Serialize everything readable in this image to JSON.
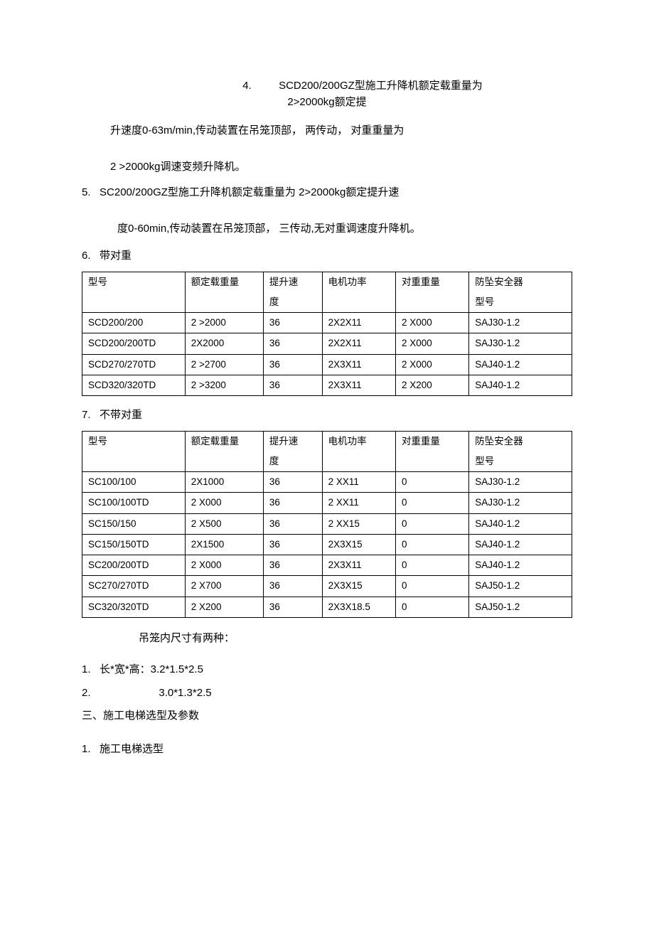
{
  "header": {
    "line1_num": "4.",
    "line1_text": "SCD200/200GZ型施工升降机额定载重量为",
    "line2_text": "2>2000kg额定提"
  },
  "para1": "升速度0-63m/min,传动装置在吊笼顶部， 两传动， 对重重量为",
  "para2": "2 >2000kg调速变频升降机。",
  "item5": "5.   SC200/200GZ型施工升降机额定载重量为 2>2000kg额定提升速",
  "item5b": "度0-60min,传动装置在吊笼顶部， 三传动,无对重调速度升降机。",
  "item6": "6.   带对重",
  "table_common": {
    "headers": {
      "c1": "型号",
      "c2": "额定载重量",
      "c3a": "提升速",
      "c3b": "度",
      "c4": "电机功率",
      "c5": "对重重量",
      "c6a": "防坠安全器",
      "c6b": "型号"
    }
  },
  "table1": {
    "rows": [
      [
        "SCD200/200",
        "2 >2000",
        "36",
        "2X2X11",
        "2 X000",
        "SAJ30-1.2"
      ],
      [
        "SCD200/200TD",
        "2X2000",
        "36",
        "2X2X11",
        "2 X000",
        "SAJ30-1.2"
      ],
      [
        "SCD270/270TD",
        "2 >2700",
        "36",
        "2X3X11",
        "2 X000",
        "SAJ40-1.2"
      ],
      [
        "SCD320/320TD",
        "2 >3200",
        "36",
        "2X3X11",
        "2 X200",
        "SAJ40-1.2"
      ]
    ]
  },
  "item7": "7.   不带对重",
  "table2": {
    "rows": [
      [
        "SC100/100",
        "2X1000",
        "36",
        "2 XX11",
        "0",
        "SAJ30-1.2"
      ],
      [
        "SC100/100TD",
        "2 X000",
        "36",
        "2 XX11",
        "0",
        "SAJ30-1.2"
      ],
      [
        "SC150/150",
        "2 X500",
        "36",
        "2 XX15",
        "0",
        "SAJ40-1.2"
      ],
      [
        "SC150/150TD",
        "2X1500",
        "36",
        "2X3X15",
        "0",
        "SAJ40-1.2"
      ],
      [
        "SC200/200TD",
        "2 X000",
        "36",
        "2X3X11",
        "0",
        "SAJ40-1.2"
      ],
      [
        "SC270/270TD",
        "2 X700",
        "36",
        "2X3X15",
        "0",
        "SAJ50-1.2"
      ],
      [
        "SC320/320TD",
        "2 X200",
        "36",
        "2X3X18.5",
        "0",
        "SAJ50-1.2"
      ]
    ]
  },
  "subtitle_dim": "吊笼内尺寸有两种：",
  "dim_list": {
    "item1": "1.   长*宽*高：3.2*1.5*2.5",
    "item2": "2.                       3.0*1.3*2.5"
  },
  "section3_title": "三、施工电梯选型及参数",
  "section3_item1": "1.   施工电梯选型"
}
